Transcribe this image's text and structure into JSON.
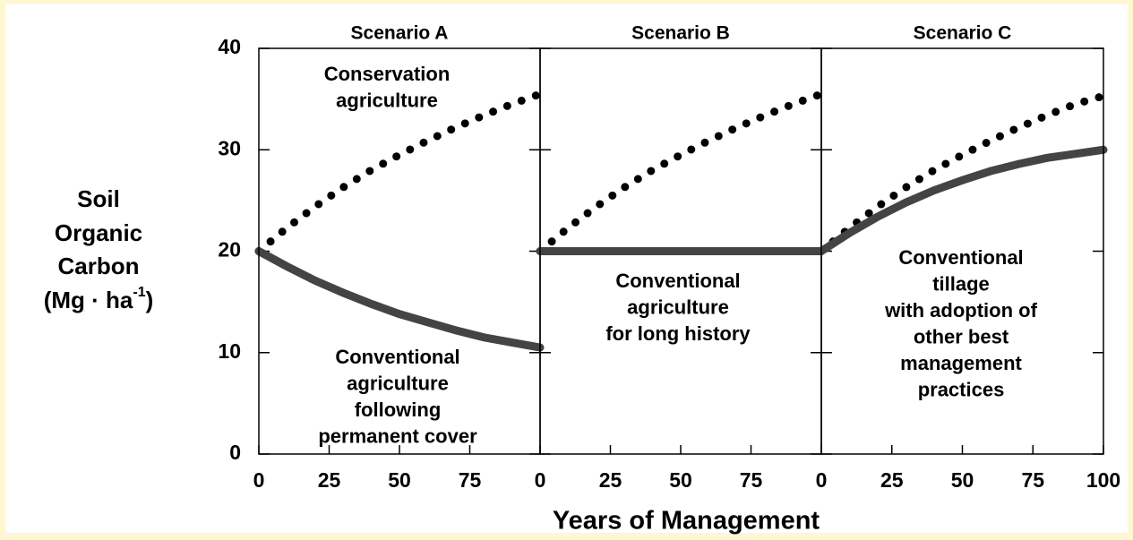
{
  "x_label": "Years of Management",
  "y_label": {
    "lines": [
      "Soil",
      "Organic",
      "Carbon"
    ],
    "unit": "(Mg · ha",
    "unit_exponent": "-1",
    "unit_close": ")"
  },
  "chart_data": [
    {
      "type": "line",
      "title": "Scenario A",
      "x": [
        0,
        10,
        20,
        30,
        40,
        50,
        60,
        70,
        80,
        90,
        100
      ],
      "series": [
        {
          "style": "dotted",
          "color": "#000000",
          "values": [
            20,
            22.3,
            24.4,
            26.3,
            28,
            29.5,
            30.9,
            32.2,
            33.4,
            34.5,
            35.5
          ]
        },
        {
          "style": "solid",
          "color": "#444444",
          "values": [
            20,
            18.5,
            17.1,
            15.9,
            14.8,
            13.8,
            13,
            12.2,
            11.5,
            11,
            10.5
          ]
        }
      ],
      "annotations": [
        [
          "Conservation",
          "agriculture"
        ],
        [
          "Conventional",
          "agriculture",
          "following",
          "permanent cover"
        ]
      ],
      "xlim": [
        0,
        100
      ],
      "xticks": [
        0,
        25,
        50,
        75
      ],
      "ylim": [
        0,
        40
      ],
      "yticks": [
        0,
        10,
        20,
        30,
        40
      ]
    },
    {
      "type": "line",
      "title": "Scenario B",
      "x": [
        0,
        10,
        20,
        30,
        40,
        50,
        60,
        70,
        80,
        90,
        100
      ],
      "series": [
        {
          "style": "dotted",
          "color": "#000000",
          "values": [
            20,
            22.3,
            24.4,
            26.3,
            28,
            29.5,
            30.9,
            32.2,
            33.4,
            34.5,
            35.5
          ]
        },
        {
          "style": "solid",
          "color": "#444444",
          "values": [
            20,
            20,
            20,
            20,
            20,
            20,
            20,
            20,
            20,
            20,
            20
          ]
        }
      ],
      "annotations": [
        [
          "Conventional",
          "agriculture",
          "for long history"
        ]
      ],
      "xlim": [
        0,
        100
      ],
      "xticks": [
        0,
        25,
        50,
        75
      ],
      "ylim": [
        0,
        40
      ],
      "yticks": [
        0,
        10,
        20,
        30,
        40
      ]
    },
    {
      "type": "line",
      "title": "Scenario C",
      "x": [
        0,
        10,
        20,
        30,
        40,
        50,
        60,
        70,
        80,
        90,
        100
      ],
      "series": [
        {
          "style": "dotted",
          "color": "#000000",
          "values": [
            20,
            22.3,
            24.4,
            26.3,
            28,
            29.5,
            30.9,
            32.2,
            33.4,
            34.5,
            35.3
          ]
        },
        {
          "style": "solid",
          "color": "#444444",
          "values": [
            20,
            21.8,
            23.4,
            24.8,
            26,
            27,
            27.9,
            28.6,
            29.2,
            29.6,
            30
          ]
        }
      ],
      "annotations": [
        [
          "Conventional",
          "tillage",
          "with adoption of",
          "other best",
          "management",
          "practices"
        ]
      ],
      "xlim": [
        0,
        100
      ],
      "xticks": [
        0,
        25,
        50,
        75,
        100
      ],
      "ylim": [
        0,
        40
      ],
      "yticks": [
        0,
        10,
        20,
        30,
        40
      ]
    }
  ]
}
